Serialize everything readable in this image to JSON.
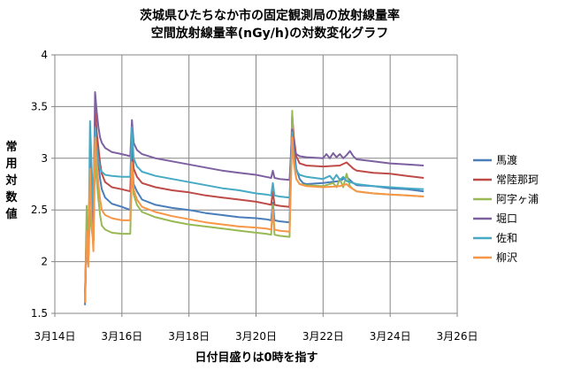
{
  "chart_data": {
    "type": "line",
    "title": "茨城県ひたちなか市の固定観測局の放射線量率",
    "subtitle": "空間放射線量率(nGy/h)の対数変化グラフ",
    "xlabel": "日付目盛りは0時を指す",
    "ylabel": "常用対数値",
    "x_tick_labels": [
      "3月14日",
      "3月16日",
      "3月18日",
      "3月20日",
      "3月22日",
      "3月24日",
      "3月26日"
    ],
    "x_ticks_day": [
      14,
      16,
      18,
      20,
      22,
      24,
      26
    ],
    "xlim_day": [
      14,
      26
    ],
    "ylim": [
      1.5,
      4
    ],
    "y_ticks": [
      1.5,
      2,
      2.5,
      3,
      3.5,
      4
    ],
    "y_tick_labels": [
      "1.5",
      "2",
      "2.5",
      "3",
      "3.5",
      "4"
    ],
    "grid": true,
    "legend_position": "right",
    "series": [
      {
        "name": "馬渡",
        "color": "#4A7EBB",
        "x": [
          14.9,
          14.95,
          15.0,
          15.05,
          15.1,
          15.15,
          15.2,
          15.25,
          15.3,
          15.35,
          15.4,
          15.5,
          15.7,
          16.0,
          16.25,
          16.3,
          16.35,
          16.45,
          16.6,
          17.0,
          17.5,
          18.0,
          18.5,
          19.0,
          19.5,
          20.0,
          20.3,
          20.45,
          20.5,
          20.55,
          20.7,
          21.0,
          21.08,
          21.13,
          21.2,
          21.3,
          21.4,
          21.5,
          22.0,
          22.5,
          22.7,
          22.8,
          22.9,
          23.0,
          23.5,
          24.0,
          24.5,
          25.0
        ],
        "y": [
          1.58,
          2.3,
          1.98,
          3.0,
          2.6,
          2.2,
          3.32,
          3.08,
          2.95,
          2.8,
          2.7,
          2.62,
          2.56,
          2.53,
          2.5,
          3.02,
          2.75,
          2.68,
          2.6,
          2.55,
          2.52,
          2.5,
          2.47,
          2.45,
          2.43,
          2.42,
          2.41,
          2.4,
          2.57,
          2.4,
          2.39,
          2.38,
          3.34,
          3.1,
          2.9,
          2.8,
          2.76,
          2.75,
          2.76,
          2.78,
          2.82,
          2.79,
          2.76,
          2.74,
          2.73,
          2.71,
          2.7,
          2.68
        ]
      },
      {
        "name": "常陸那珂",
        "color": "#BE4B48",
        "x": [
          14.9,
          14.95,
          15.0,
          15.05,
          15.1,
          15.15,
          15.2,
          15.25,
          15.3,
          15.35,
          15.4,
          15.5,
          15.7,
          16.0,
          16.25,
          16.3,
          16.35,
          16.45,
          16.6,
          17.0,
          17.5,
          18.0,
          18.5,
          19.0,
          19.5,
          20.0,
          20.3,
          20.45,
          20.5,
          20.55,
          20.7,
          21.0,
          21.08,
          21.13,
          21.2,
          21.3,
          21.5,
          22.0,
          22.5,
          22.7,
          22.8,
          22.9,
          23.0,
          23.5,
          24.0,
          24.5,
          25.0
        ],
        "y": [
          1.6,
          2.3,
          2.0,
          3.0,
          2.6,
          2.2,
          3.5,
          3.25,
          3.1,
          2.95,
          2.85,
          2.77,
          2.72,
          2.7,
          2.68,
          3.2,
          2.9,
          2.82,
          2.76,
          2.72,
          2.69,
          2.67,
          2.64,
          2.62,
          2.6,
          2.58,
          2.56,
          2.55,
          2.68,
          2.55,
          2.54,
          2.53,
          3.42,
          3.2,
          3.02,
          2.95,
          2.93,
          2.92,
          2.93,
          2.96,
          2.93,
          2.9,
          2.88,
          2.86,
          2.85,
          2.83,
          2.81
        ]
      },
      {
        "name": "阿字ヶ浦",
        "color": "#98B954",
        "x": [
          14.9,
          14.95,
          15.0,
          15.05,
          15.1,
          15.15,
          15.2,
          15.25,
          15.3,
          15.35,
          15.4,
          15.5,
          15.7,
          16.0,
          16.25,
          16.3,
          16.35,
          16.45,
          16.6,
          17.0,
          17.5,
          18.0,
          18.5,
          19.0,
          19.5,
          20.0,
          20.3,
          20.45,
          20.5,
          20.55,
          20.7,
          21.0,
          21.08,
          21.13,
          21.2,
          21.3,
          21.5,
          22.0,
          22.3,
          22.4,
          22.5,
          22.6,
          22.7,
          22.8,
          22.9,
          23.0,
          23.5,
          24.0,
          24.5,
          25.0
        ],
        "y": [
          1.62,
          2.54,
          2.0,
          2.5,
          2.3,
          2.2,
          2.98,
          2.78,
          2.6,
          2.45,
          2.35,
          2.31,
          2.28,
          2.27,
          2.27,
          2.94,
          2.65,
          2.55,
          2.48,
          2.43,
          2.39,
          2.36,
          2.34,
          2.32,
          2.3,
          2.28,
          2.27,
          2.26,
          2.55,
          2.26,
          2.25,
          2.24,
          3.46,
          3.0,
          2.8,
          2.75,
          2.74,
          2.73,
          2.76,
          2.72,
          2.8,
          2.72,
          2.85,
          2.73,
          2.7,
          2.68,
          2.66,
          2.65,
          2.64,
          2.63
        ]
      },
      {
        "name": "堀口",
        "color": "#7D60A0",
        "x": [
          14.9,
          14.95,
          15.0,
          15.05,
          15.1,
          15.15,
          15.2,
          15.25,
          15.3,
          15.35,
          15.4,
          15.5,
          15.7,
          16.0,
          16.25,
          16.3,
          16.35,
          16.45,
          16.6,
          17.0,
          17.5,
          18.0,
          18.5,
          19.0,
          19.5,
          20.0,
          20.3,
          20.45,
          20.5,
          20.55,
          20.7,
          21.0,
          21.08,
          21.13,
          21.2,
          21.3,
          21.5,
          22.0,
          22.1,
          22.2,
          22.3,
          22.4,
          22.5,
          22.6,
          22.7,
          22.8,
          22.9,
          23.0,
          23.5,
          24.0,
          24.5,
          25.0
        ],
        "y": [
          1.7,
          2.3,
          2.0,
          3.0,
          2.6,
          2.3,
          3.64,
          3.45,
          3.3,
          3.2,
          3.15,
          3.1,
          3.06,
          3.04,
          3.02,
          3.37,
          3.15,
          3.08,
          3.04,
          3.0,
          2.97,
          2.94,
          2.91,
          2.88,
          2.86,
          2.84,
          2.82,
          2.81,
          2.88,
          2.81,
          2.8,
          2.79,
          3.28,
          3.1,
          3.04,
          3.02,
          3.01,
          3.0,
          3.04,
          3.0,
          3.05,
          3.01,
          3.04,
          3.0,
          3.03,
          3.07,
          3.02,
          2.99,
          2.97,
          2.95,
          2.94,
          2.93
        ]
      },
      {
        "name": "佐和",
        "color": "#46AAC5",
        "x": [
          14.9,
          14.95,
          15.0,
          15.05,
          15.1,
          15.15,
          15.2,
          15.25,
          15.3,
          15.35,
          15.4,
          15.5,
          15.7,
          16.0,
          16.25,
          16.3,
          16.35,
          16.45,
          16.6,
          17.0,
          17.5,
          18.0,
          18.5,
          19.0,
          19.5,
          20.0,
          20.3,
          20.45,
          20.5,
          20.55,
          20.7,
          21.0,
          21.08,
          21.13,
          21.2,
          21.3,
          21.5,
          22.0,
          22.2,
          22.3,
          22.4,
          22.5,
          22.6,
          22.7,
          23.0,
          23.5,
          24.0,
          24.5,
          25.0
        ],
        "y": [
          1.65,
          2.3,
          2.0,
          3.36,
          2.9,
          2.5,
          3.3,
          3.1,
          2.98,
          2.9,
          2.87,
          2.84,
          2.83,
          2.82,
          2.82,
          3.3,
          3.0,
          2.92,
          2.87,
          2.83,
          2.8,
          2.77,
          2.74,
          2.71,
          2.69,
          2.66,
          2.65,
          2.64,
          2.76,
          2.64,
          2.63,
          2.62,
          3.25,
          3.0,
          2.88,
          2.84,
          2.82,
          2.8,
          2.83,
          2.79,
          2.84,
          2.79,
          2.82,
          2.78,
          2.75,
          2.73,
          2.72,
          2.71,
          2.7
        ]
      },
      {
        "name": "柳沢",
        "color": "#F79646",
        "x": [
          14.9,
          14.95,
          15.0,
          15.05,
          15.1,
          15.15,
          15.2,
          15.25,
          15.3,
          15.35,
          15.4,
          15.5,
          15.7,
          16.0,
          16.25,
          16.3,
          16.35,
          16.45,
          16.6,
          17.0,
          17.5,
          18.0,
          18.5,
          19.0,
          19.5,
          20.0,
          20.3,
          20.45,
          20.5,
          20.55,
          20.7,
          21.0,
          21.08,
          21.13,
          21.2,
          21.3,
          21.5,
          22.0,
          22.5,
          22.7,
          22.8,
          22.9,
          23.0,
          23.5,
          24.0,
          24.5,
          25.0
        ],
        "y": [
          1.6,
          2.3,
          1.95,
          2.9,
          2.4,
          2.1,
          3.2,
          2.95,
          2.75,
          2.6,
          2.5,
          2.45,
          2.42,
          2.4,
          2.4,
          2.96,
          2.7,
          2.6,
          2.53,
          2.48,
          2.44,
          2.41,
          2.38,
          2.36,
          2.34,
          2.33,
          2.32,
          2.31,
          2.5,
          2.31,
          2.3,
          2.29,
          3.2,
          2.95,
          2.8,
          2.75,
          2.73,
          2.72,
          2.73,
          2.75,
          2.72,
          2.7,
          2.68,
          2.66,
          2.65,
          2.64,
          2.63
        ]
      }
    ]
  }
}
